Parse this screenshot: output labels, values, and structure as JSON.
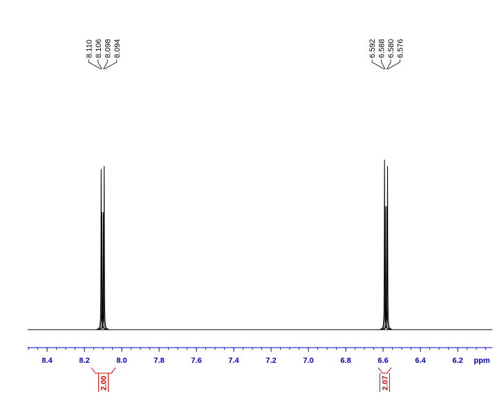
{
  "chart_data": {
    "type": "nmr",
    "x_label": "ppm",
    "xlim": [
      8.504,
      6.015
    ],
    "xticks": [
      8.4,
      8.2,
      {
        "value": 8,
        "label": "8.0"
      },
      7.8,
      7.6,
      7.4,
      7.2,
      {
        "value": 7,
        "label": "7.0"
      },
      6.8,
      6.6,
      6.4,
      6.2
    ],
    "xminor_step": 0.05,
    "ylim": [
      0,
      100
    ],
    "color": "#000000",
    "axis_color": "#0000c8",
    "peaks": {
      "x": [
        8.11,
        8.106,
        8.098,
        8.094,
        6.592,
        6.588,
        6.58,
        6.576
      ],
      "x_labels": [
        "8.110",
        "8.106",
        "8.098",
        "8.094",
        "6.592",
        "6.588",
        "6.580",
        "6.576"
      ],
      "values": [
        52,
        38,
        38,
        53,
        55,
        40,
        40,
        53
      ]
    },
    "integrals": [
      {
        "from": 8.163,
        "to": 8.033,
        "value": 2,
        "label": "2.00"
      },
      {
        "from": 6.626,
        "to": 6.556,
        "value": 2.07,
        "label": "2.07"
      }
    ],
    "integral_color": "#d00000"
  }
}
